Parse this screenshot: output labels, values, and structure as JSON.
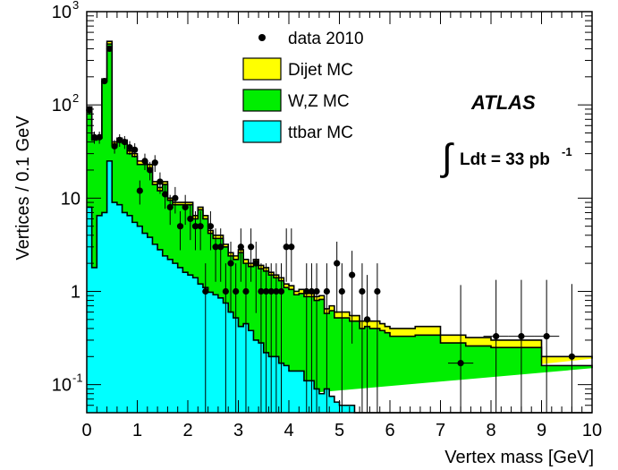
{
  "chart_data": {
    "type": "bar",
    "xlabel": "Vertex mass [GeV]",
    "ylabel": "Vertices / 0.1 GeV",
    "xlim": [
      0,
      10
    ],
    "ylim": [
      0.05,
      1000
    ],
    "log_y": true,
    "grid": false,
    "legend_position": "top-center",
    "x_ticks": [
      0,
      1,
      2,
      3,
      4,
      5,
      6,
      7,
      8,
      9,
      10
    ],
    "y_ticks": [
      {
        "value": 0.1,
        "mantissa": "10",
        "exponent": "-1"
      },
      {
        "value": 1,
        "mantissa": "1",
        "exponent": ""
      },
      {
        "value": 10,
        "mantissa": "10",
        "exponent": ""
      },
      {
        "value": 100,
        "mantissa": "10",
        "exponent": "2"
      },
      {
        "value": 1000,
        "mantissa": "10",
        "exponent": "3"
      }
    ],
    "bin_edges": [
      0.0,
      0.1,
      0.2,
      0.3,
      0.4,
      0.5,
      0.6,
      0.7,
      0.8,
      0.9,
      1.0,
      1.1,
      1.2,
      1.3,
      1.4,
      1.5,
      1.6,
      1.7,
      1.8,
      1.9,
      2.0,
      2.1,
      2.2,
      2.3,
      2.4,
      2.5,
      2.6,
      2.7,
      2.8,
      2.9,
      3.0,
      3.1,
      3.2,
      3.3,
      3.4,
      3.5,
      3.6,
      3.7,
      3.8,
      3.9,
      4.0,
      4.1,
      4.2,
      4.3,
      4.4,
      4.5,
      4.6,
      4.7,
      4.8,
      4.9,
      5.0,
      5.1,
      5.2,
      5.3,
      5.4,
      5.5,
      5.6,
      5.7,
      5.8,
      5.9,
      6.0,
      6.5,
      7.0,
      7.5,
      8.0,
      8.5,
      9.0,
      9.5,
      10.0
    ],
    "series": [
      {
        "name": "Dijet MC",
        "color": "#ffff00",
        "values": [
          95,
          45,
          46,
          190,
          480,
          40,
          44,
          42,
          32,
          30,
          25,
          25,
          23,
          15,
          13,
          15,
          10,
          9,
          9,
          9,
          9,
          6.5,
          8,
          6.5,
          4.5,
          4,
          4,
          3.2,
          2.6,
          2.4,
          2.8,
          2.2,
          2.0,
          2.2,
          1.9,
          1.8,
          1.6,
          1.5,
          1.4,
          1.2,
          1.15,
          1.0,
          1.05,
          0.95,
          0.95,
          0.88,
          0.9,
          0.65,
          0.7,
          0.6,
          0.6,
          0.6,
          0.55,
          0.55,
          0.48,
          0.5,
          0.48,
          0.48,
          0.45,
          0.42,
          0.4,
          0.42,
          0.34,
          0.32,
          0.3,
          0.3,
          0.2,
          0.2,
          0.19
        ]
      },
      {
        "name": "W,Z MC",
        "color": "#00ee00",
        "values": [
          90,
          42,
          44,
          180,
          450,
          37,
          41,
          39,
          30,
          28,
          23,
          23,
          21,
          14,
          12,
          14,
          9.5,
          8.5,
          8.5,
          8.5,
          8.5,
          6.0,
          7.5,
          6.0,
          4.2,
          3.7,
          3.7,
          3.0,
          2.4,
          2.2,
          2.6,
          2.0,
          1.85,
          2.0,
          1.75,
          1.65,
          1.5,
          1.4,
          1.3,
          1.1,
          1.05,
          0.92,
          0.95,
          0.88,
          0.88,
          0.8,
          0.82,
          0.58,
          0.62,
          0.52,
          0.52,
          0.52,
          0.48,
          0.48,
          0.4,
          0.42,
          0.4,
          0.4,
          0.38,
          0.36,
          0.33,
          0.34,
          0.28,
          0.26,
          0.25,
          0.25,
          0.16,
          0.16,
          0.15
        ]
      },
      {
        "name": "ttbar MC",
        "color": "#00ffff",
        "values": [
          8,
          1.8,
          6.5,
          7,
          25,
          9,
          8.5,
          7,
          6.5,
          5.5,
          5,
          4.2,
          3.8,
          3.2,
          2.8,
          2.4,
          2.2,
          2.0,
          1.8,
          1.6,
          1.5,
          1.4,
          1.2,
          1.1,
          0.98,
          0.92,
          0.85,
          0.75,
          0.6,
          0.52,
          0.42,
          0.45,
          0.38,
          0.3,
          0.28,
          0.22,
          0.2,
          0.2,
          0.17,
          0.16,
          0.14,
          0.14,
          0.14,
          0.11,
          0.11,
          0.09,
          0.08,
          0.09,
          0.075,
          0.065,
          0.06,
          0.06,
          0.06,
          0.05,
          0.05,
          0.05,
          0.05,
          0.05,
          0.05,
          0.05,
          0.05,
          0.05,
          0.05,
          0.05,
          0.05,
          0.05,
          0.05,
          0.05,
          0.05
        ]
      },
      {
        "name": "data 2010",
        "color": "#000000",
        "points": [
          {
            "x": 0.05,
            "y": 88
          },
          {
            "x": 0.15,
            "y": 45
          },
          {
            "x": 0.25,
            "y": 45
          },
          {
            "x": 0.35,
            "y": 180
          },
          {
            "x": 0.45,
            "y": 400
          },
          {
            "x": 0.55,
            "y": 36
          },
          {
            "x": 0.65,
            "y": 42
          },
          {
            "x": 0.75,
            "y": 40
          },
          {
            "x": 0.85,
            "y": 35
          },
          {
            "x": 0.95,
            "y": 33
          },
          {
            "x": 1.05,
            "y": 12
          },
          {
            "x": 1.15,
            "y": 25
          },
          {
            "x": 1.25,
            "y": 20
          },
          {
            "x": 1.35,
            "y": 24
          },
          {
            "x": 1.45,
            "y": 15
          },
          {
            "x": 1.55,
            "y": 11
          },
          {
            "x": 1.65,
            "y": 8
          },
          {
            "x": 1.75,
            "y": 10
          },
          {
            "x": 1.85,
            "y": 5
          },
          {
            "x": 1.95,
            "y": 8
          },
          {
            "x": 2.05,
            "y": 6
          },
          {
            "x": 2.15,
            "y": 5
          },
          {
            "x": 2.25,
            "y": 5
          },
          {
            "x": 2.35,
            "y": 1
          },
          {
            "x": 2.45,
            "y": 5
          },
          {
            "x": 2.55,
            "y": 3
          },
          {
            "x": 2.65,
            "y": 3
          },
          {
            "x": 2.75,
            "y": 1
          },
          {
            "x": 2.85,
            "y": 2
          },
          {
            "x": 2.95,
            "y": 1
          },
          {
            "x": 3.05,
            "y": 3
          },
          {
            "x": 3.15,
            "y": 1
          },
          {
            "x": 3.25,
            "y": 3
          },
          {
            "x": 3.35,
            "y": 2
          },
          {
            "x": 3.45,
            "y": 1
          },
          {
            "x": 3.55,
            "y": 1
          },
          {
            "x": 3.65,
            "y": 1
          },
          {
            "x": 3.75,
            "y": 1
          },
          {
            "x": 3.85,
            "y": 1
          },
          {
            "x": 3.95,
            "y": 3
          },
          {
            "x": 4.05,
            "y": 3
          },
          {
            "x": 4.35,
            "y": 1
          },
          {
            "x": 4.45,
            "y": 1
          },
          {
            "x": 4.55,
            "y": 1
          },
          {
            "x": 4.75,
            "y": 1
          },
          {
            "x": 4.95,
            "y": 2
          },
          {
            "x": 5.05,
            "y": 1
          },
          {
            "x": 5.25,
            "y": 1.5
          },
          {
            "x": 5.45,
            "y": 1
          },
          {
            "x": 5.55,
            "y": 0.5
          },
          {
            "x": 5.75,
            "y": 1
          },
          {
            "x": 7.4,
            "y": 0.17
          },
          {
            "x": 8.1,
            "y": 0.33
          },
          {
            "x": 8.6,
            "y": 0.33
          },
          {
            "x": 9.1,
            "y": 0.33
          },
          {
            "x": 9.6,
            "y": 0.2
          }
        ]
      }
    ],
    "legend": [
      {
        "label": "data 2010",
        "kind": "marker",
        "color": "#000000"
      },
      {
        "label": "Dijet MC",
        "kind": "box",
        "color": "#ffff00"
      },
      {
        "label": "W,Z MC",
        "kind": "box",
        "color": "#00ee00"
      },
      {
        "label": "ttbar MC",
        "kind": "box",
        "color": "#00ffff"
      }
    ],
    "annotations": {
      "experiment": "ATLAS",
      "lumi_symbol": "∫",
      "lumi_text": "Ldt = 33 pb",
      "lumi_exponent": "-1"
    }
  }
}
